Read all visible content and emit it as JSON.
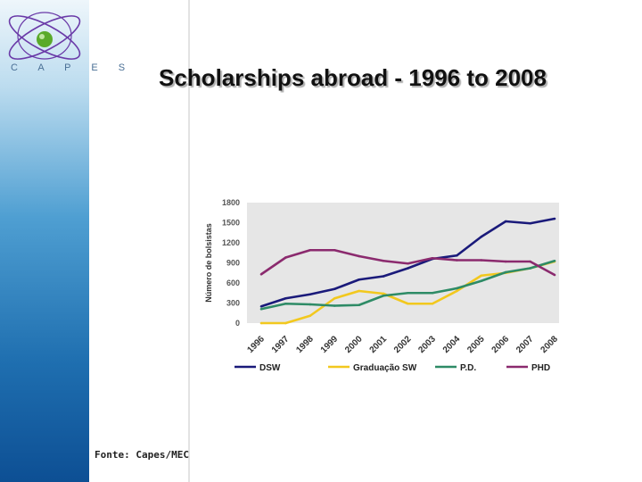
{
  "slide": {
    "title": "Scholarships abroad - 1996 to 2008",
    "logo_text": "C A P E S",
    "source": "Fonte: Capes/MEC"
  },
  "colors": {
    "dsw": "#1a1a7a",
    "grad_sw": "#f2c81e",
    "pd": "#2e8b66",
    "phd": "#8b2a6e",
    "plot_bg": "#e6e6e6",
    "logo_ring": "#6a3aa8",
    "logo_ball": "#5aaa2a"
  },
  "chart_data": {
    "type": "line",
    "ylabel": "Número de bolsistas",
    "xlabel": "",
    "ylim": [
      0,
      1800
    ],
    "yticks": [
      0,
      300,
      600,
      900,
      1200,
      1500,
      1800
    ],
    "x": [
      "1996",
      "1997",
      "1998",
      "1999",
      "2000",
      "2001",
      "2002",
      "2003",
      "2004",
      "2005",
      "2006",
      "2007",
      "2008"
    ],
    "legend_position": "bottom",
    "grid": false,
    "series": [
      {
        "name": "DSW",
        "color_key": "dsw",
        "values": [
          250,
          370,
          430,
          510,
          650,
          700,
          820,
          960,
          1010,
          1290,
          1520,
          1490,
          1560
        ]
      },
      {
        "name": "Graduação SW",
        "color_key": "grad_sw",
        "values": [
          0,
          0,
          110,
          370,
          480,
          440,
          290,
          290,
          480,
          710,
          750,
          820,
          920
        ]
      },
      {
        "name": "P.D.",
        "color_key": "pd",
        "values": [
          210,
          290,
          280,
          260,
          270,
          410,
          450,
          450,
          520,
          630,
          760,
          820,
          930
        ]
      },
      {
        "name": "PHD",
        "color_key": "phd",
        "values": [
          730,
          980,
          1090,
          1090,
          1000,
          930,
          890,
          970,
          940,
          940,
          920,
          920,
          720
        ]
      }
    ]
  }
}
